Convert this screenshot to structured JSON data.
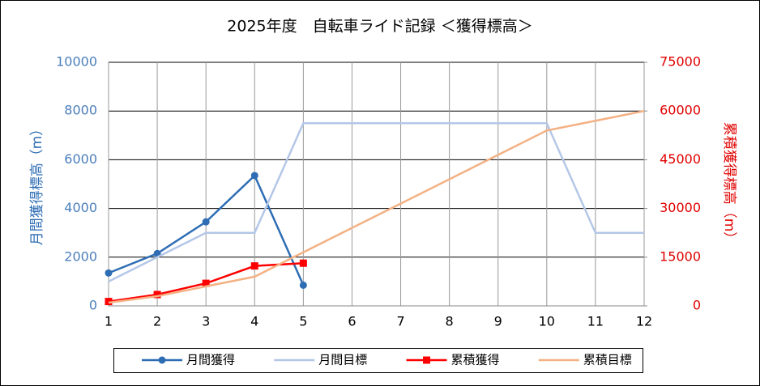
{
  "chart_data": {
    "type": "line",
    "title": "2025年度　自転車ライド記録 ＜獲得標高＞",
    "ylabel": "月間獲得標高（m）",
    "y2label": "累積獲得標高（m）",
    "x": [
      1,
      2,
      3,
      4,
      5,
      6,
      7,
      8,
      9,
      10,
      11,
      12
    ],
    "xlim": [
      1,
      12
    ],
    "xticks": [
      1,
      2,
      3,
      4,
      5,
      6,
      7,
      8,
      9,
      10,
      11,
      12
    ],
    "ylim": [
      0,
      10000
    ],
    "yticks": [
      0,
      2000,
      4000,
      6000,
      8000,
      10000
    ],
    "y2lim": [
      0,
      75000
    ],
    "y2ticks": [
      0,
      15000,
      30000,
      45000,
      60000,
      75000
    ],
    "grid": true,
    "legend": "bottom",
    "series": [
      {
        "name": "月間獲得",
        "color": "#2e6db4",
        "marker": "circle",
        "values": [
          1350,
          2150,
          3450,
          5350,
          850,
          null,
          null,
          null,
          null,
          null,
          null,
          null
        ]
      },
      {
        "name": "月間目標",
        "color": "#b4c7e7",
        "values": [
          1000,
          2000,
          3000,
          3000,
          7500,
          7500,
          7500,
          7500,
          7500,
          7500,
          3000,
          3000
        ]
      },
      {
        "name": "累積獲得",
        "color": "#ff0000",
        "marker": "square",
        "axis": "y2",
        "values": [
          1350,
          3500,
          6950,
          12300,
          13150,
          null,
          null,
          null,
          null,
          null,
          null,
          null
        ]
      },
      {
        "name": "累積目標",
        "color": "#f4b183",
        "axis": "y2",
        "values": [
          1000,
          3000,
          6000,
          9000,
          16500,
          24000,
          31500,
          39000,
          46500,
          54000,
          57000,
          60000
        ]
      }
    ]
  }
}
